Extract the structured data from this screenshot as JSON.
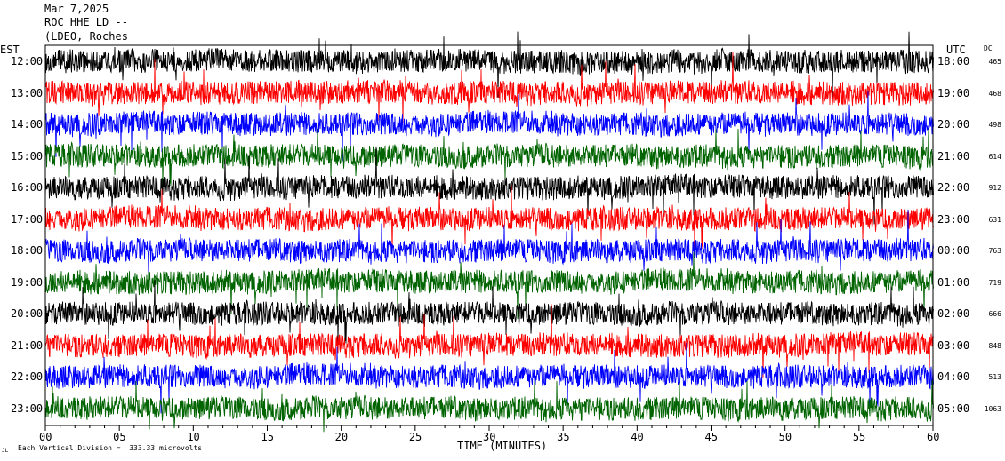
{
  "header": {
    "date": "Mar 7,2025",
    "station": "ROC HHE LD --",
    "location": "(LDEO, Roches"
  },
  "footer": {
    "time_label": "TIME (MINUTES)",
    "scale_note": "Each Vertical Division =  333.33 microvolts",
    "corner_mark": "JL"
  },
  "chart_data": {
    "type": "line",
    "title": "",
    "xlabel": "TIME (MINUTES)",
    "x_range": [
      0,
      60
    ],
    "x_ticks": [
      "00",
      "05",
      "10",
      "15",
      "20",
      "25",
      "30",
      "35",
      "40",
      "45",
      "50",
      "55",
      "60"
    ],
    "left_axis_label": "EST",
    "right_axis_label": "UTC",
    "dc_label": "DC",
    "colors": [
      "#000000",
      "#ff0000",
      "#0000ff",
      "#006400"
    ],
    "rows": [
      {
        "est": "12:00",
        "utc": "18:00",
        "dc": "465"
      },
      {
        "est": "13:00",
        "utc": "19:00",
        "dc": "468"
      },
      {
        "est": "14:00",
        "utc": "20:00",
        "dc": "498"
      },
      {
        "est": "15:00",
        "utc": "21:00",
        "dc": "614"
      },
      {
        "est": "16:00",
        "utc": "22:00",
        "dc": "912"
      },
      {
        "est": "17:00",
        "utc": "23:00",
        "dc": "631"
      },
      {
        "est": "18:00",
        "utc": "00:00",
        "dc": "763"
      },
      {
        "est": "19:00",
        "utc": "01:00",
        "dc": "719"
      },
      {
        "est": "20:00",
        "utc": "02:00",
        "dc": "666"
      },
      {
        "est": "21:00",
        "utc": "03:00",
        "dc": "848"
      },
      {
        "est": "22:00",
        "utc": "04:00",
        "dc": "513"
      },
      {
        "est": "23:00",
        "utc": "05:00",
        "dc": "1063"
      }
    ],
    "grid": false
  }
}
